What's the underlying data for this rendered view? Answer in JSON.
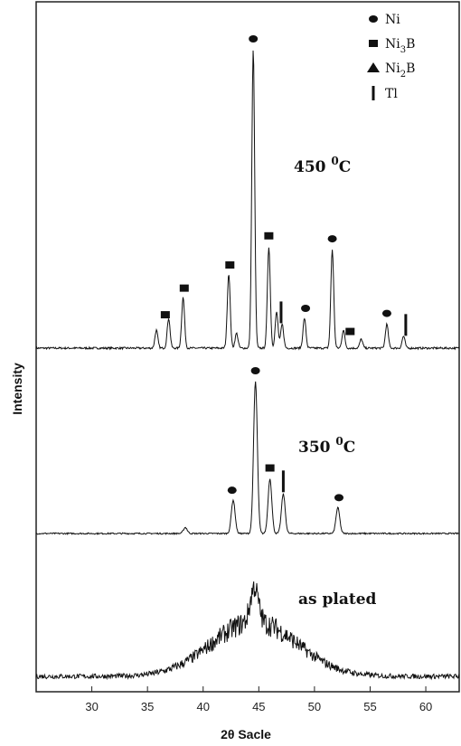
{
  "chart_data": {
    "type": "line",
    "xlabel": "2θ Sacle",
    "ylabel": "Intensity",
    "xlim": [
      25,
      63
    ],
    "xticks": [
      30,
      35,
      40,
      45,
      50,
      55,
      60
    ],
    "grid": false,
    "legend_position": "top-right",
    "legend": [
      {
        "marker": "circle",
        "label": "Ni",
        "main": "Ni",
        "sub": ""
      },
      {
        "marker": "square",
        "label": "Ni3B",
        "main": "Ni",
        "sub": "3",
        "tail": "B"
      },
      {
        "marker": "triangle",
        "label": "Ni2B",
        "main": "Ni",
        "sub": "2",
        "tail": "B"
      },
      {
        "marker": "bar",
        "label": "Tl",
        "main": "Tl",
        "sub": ""
      }
    ],
    "series": [
      {
        "name": "450 0C",
        "label_main": "450 ",
        "label_sup": "0",
        "label_tail": "C",
        "peaks": [
          {
            "x": 35.8,
            "h": 0.06
          },
          {
            "x": 36.9,
            "h": 0.1
          },
          {
            "x": 38.2,
            "h": 0.17
          },
          {
            "x": 42.3,
            "h": 0.25
          },
          {
            "x": 43.0,
            "h": 0.05
          },
          {
            "x": 44.5,
            "h": 1.0
          },
          {
            "x": 45.9,
            "h": 0.34
          },
          {
            "x": 46.6,
            "h": 0.12
          },
          {
            "x": 47.1,
            "h": 0.08
          },
          {
            "x": 49.1,
            "h": 0.1
          },
          {
            "x": 51.6,
            "h": 0.33
          },
          {
            "x": 52.6,
            "h": 0.06
          },
          {
            "x": 54.2,
            "h": 0.03
          },
          {
            "x": 56.5,
            "h": 0.08
          },
          {
            "x": 58.0,
            "h": 0.04
          }
        ],
        "markers": [
          {
            "type": "square",
            "x": 36.6
          },
          {
            "type": "square",
            "x": 38.3
          },
          {
            "type": "square",
            "x": 42.4
          },
          {
            "type": "circle",
            "x": 44.5
          },
          {
            "type": "square",
            "x": 45.9
          },
          {
            "type": "bar",
            "x": 47.0
          },
          {
            "type": "circle",
            "x": 49.2
          },
          {
            "type": "circle",
            "x": 51.6
          },
          {
            "type": "square",
            "x": 53.2
          },
          {
            "type": "circle",
            "x": 56.5
          },
          {
            "type": "bar",
            "x": 58.2
          }
        ]
      },
      {
        "name": "350 0C",
        "label_main": "350 ",
        "label_sup": "0",
        "label_tail": "C",
        "peaks": [
          {
            "x": 38.4,
            "h": 0.04
          },
          {
            "x": 42.7,
            "h": 0.22
          },
          {
            "x": 44.7,
            "h": 1.0
          },
          {
            "x": 46.0,
            "h": 0.36
          },
          {
            "x": 47.2,
            "h": 0.26
          },
          {
            "x": 52.1,
            "h": 0.17
          }
        ],
        "markers": [
          {
            "type": "circle",
            "x": 42.6
          },
          {
            "type": "circle",
            "x": 44.7
          },
          {
            "type": "square",
            "x": 46.0
          },
          {
            "type": "bar",
            "x": 47.2
          },
          {
            "type": "circle",
            "x": 52.2
          }
        ]
      },
      {
        "name": "as plated",
        "label_main": "as plated",
        "label_sup": "",
        "label_tail": "",
        "broad_peak": {
          "center": 44.6,
          "width": 3.8,
          "height": 1.0
        },
        "noise": 0.12
      }
    ]
  }
}
